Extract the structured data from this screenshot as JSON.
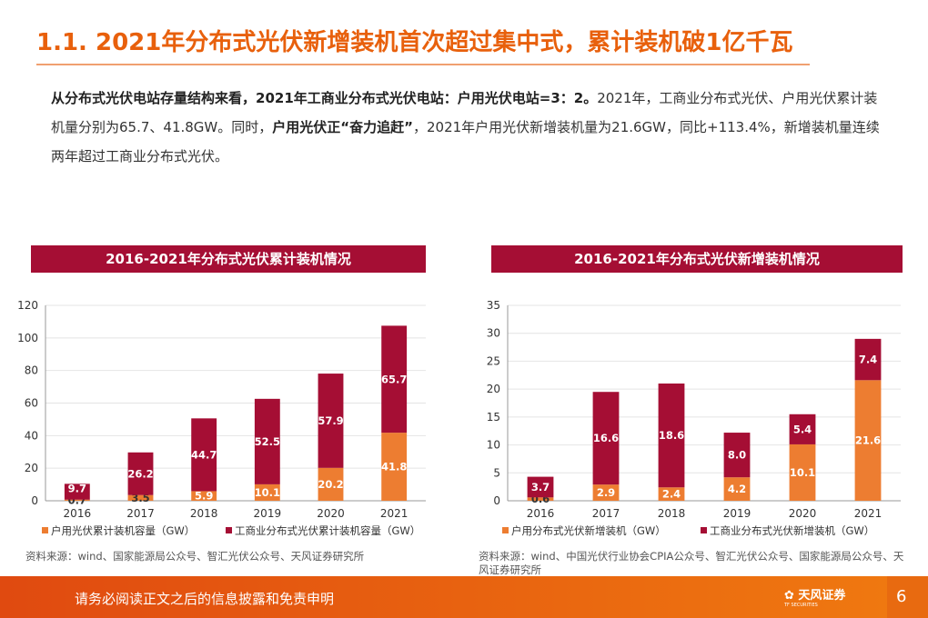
{
  "title": "1.1. 2021年分布式光伏新增装机首次超过集中式，累计装机破1亿千瓦",
  "paragraph": {
    "p1_bold": "从分布式光伏电站存量结构来看，2021年工商业分布式光伏电站：户用光伏电站=3：2。",
    "p2": "2021年，工商业分布式光伏、户用光伏累计装机量分别为65.7、41.8GW。同时，",
    "p3_bold": "户用光伏正“奋力追赶”",
    "p4": "，2021年户用光伏新增装机量为21.6GW，同比+113.4%，新增装机量连续两年超过工商业分布式光伏。"
  },
  "colors": {
    "orange": "#ED7D31",
    "red": "#A50E34",
    "accent": "#E8600C"
  },
  "chart_data": [
    {
      "type": "bar",
      "stacked": true,
      "title": "2016-2021年分布式光伏累计装机情况",
      "categories": [
        "2016",
        "2017",
        "2018",
        "2019",
        "2020",
        "2021"
      ],
      "ylim": [
        0,
        120
      ],
      "yticks": [
        "0",
        "20",
        "40",
        "60",
        "80",
        "100",
        "120"
      ],
      "grid": true,
      "legend": "bottom",
      "series": [
        {
          "name": "户用光伏累计装机容量（GW）",
          "values": [
            0.7,
            3.5,
            5.9,
            10.1,
            20.2,
            41.8
          ],
          "labels": [
            "0.7",
            "3.5",
            "5.9",
            "10.1",
            "20.2",
            "41.8"
          ]
        },
        {
          "name": "工商业分布式光伏累计装机容量（GW）",
          "values": [
            9.7,
            26.2,
            44.7,
            52.5,
            57.9,
            65.7
          ],
          "labels": [
            "9.7",
            "26.2",
            "44.7",
            "52.5",
            "57.9",
            "65.7"
          ]
        }
      ],
      "source": "资料来源：wind、国家能源局公众号、智汇光伏公众号、天风证券研究所"
    },
    {
      "type": "bar",
      "stacked": true,
      "title": "2016-2021年分布式光伏新增装机情况",
      "categories": [
        "2016",
        "2017",
        "2018",
        "2019",
        "2020",
        "2021"
      ],
      "ylim": [
        0,
        35
      ],
      "yticks": [
        "0",
        "5",
        "10",
        "15",
        "20",
        "25",
        "30",
        "35"
      ],
      "grid": true,
      "legend": "bottom",
      "series": [
        {
          "name": "户用分布式光伏新增装机（GW）",
          "values": [
            0.6,
            2.9,
            2.4,
            4.2,
            10.1,
            21.6
          ],
          "labels": [
            "0.6",
            "2.9",
            "2.4",
            "4.2",
            "10.1",
            "21.6"
          ]
        },
        {
          "name": "工商业分布式光伏新增装机（GW）",
          "values": [
            3.7,
            16.6,
            18.6,
            8.0,
            5.4,
            7.4
          ],
          "labels": [
            "3.7",
            "16.6",
            "18.6",
            "8.0",
            "5.4",
            "7.4"
          ]
        }
      ],
      "source": "资料来源：wind、中国光伏行业协会CPIA公众号、智汇光伏公众号、国家能源局公众号、天风证券研究所"
    }
  ],
  "footer": {
    "disclaimer": "请务必阅读正文之后的信息披露和免责申明",
    "logo": "天风证券",
    "logo_sub": "TF SECURITIES",
    "page": "6"
  }
}
